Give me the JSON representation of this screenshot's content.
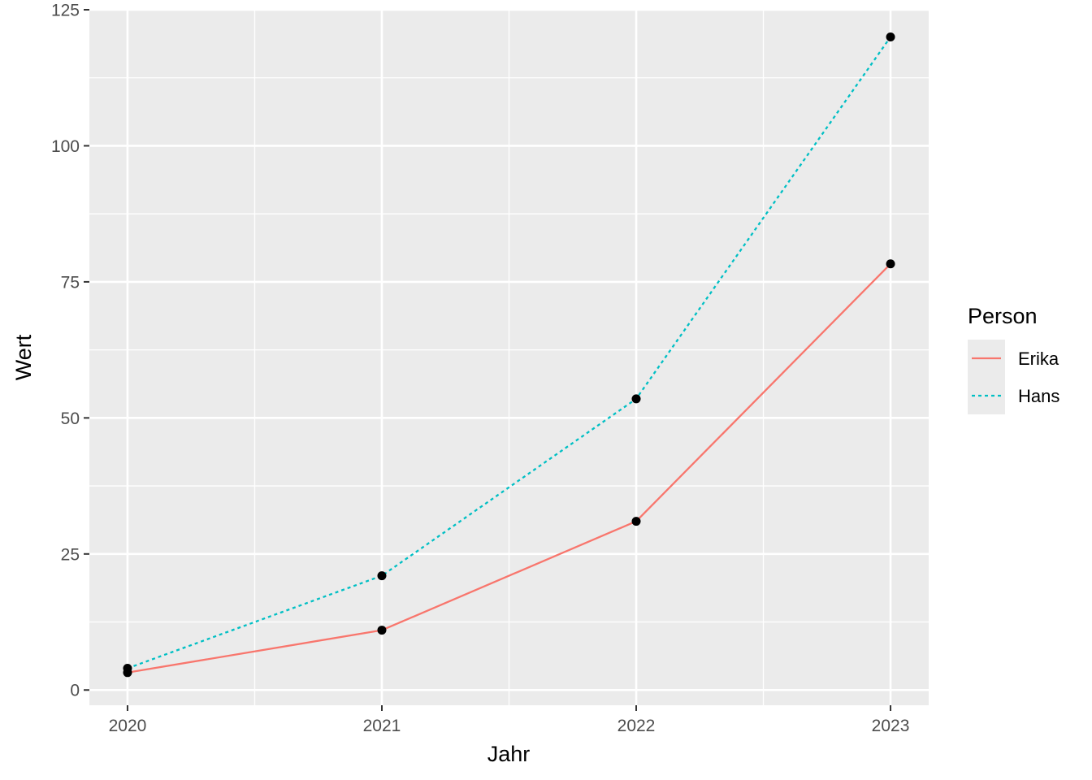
{
  "chart_data": {
    "type": "line",
    "xlabel": "Jahr",
    "ylabel": "Wert",
    "x": [
      2020,
      2021,
      2022,
      2023
    ],
    "x_tick_labels": [
      "2020",
      "2021",
      "2022",
      "2023"
    ],
    "y_ticks": [
      0,
      25,
      50,
      75,
      100,
      125
    ],
    "y_tick_labels": [
      "0",
      "25",
      "50",
      "75",
      "100",
      "125"
    ],
    "xlim": [
      2019.85,
      2023.15
    ],
    "ylim": [
      -2.8,
      125
    ],
    "grid": true,
    "legend": {
      "title": "Person",
      "placement": "right"
    },
    "series": [
      {
        "name": "Erika",
        "values": [
          3.2,
          11,
          31,
          78.3
        ],
        "color": "#F8766D",
        "linestyle": "solid"
      },
      {
        "name": "Hans",
        "values": [
          4,
          21,
          53.5,
          120
        ],
        "color": "#00BFC4",
        "linestyle": "dotted"
      }
    ],
    "point_color": "#000000",
    "panel_background": "#EBEBEB",
    "grid_color": "#FFFFFF"
  }
}
